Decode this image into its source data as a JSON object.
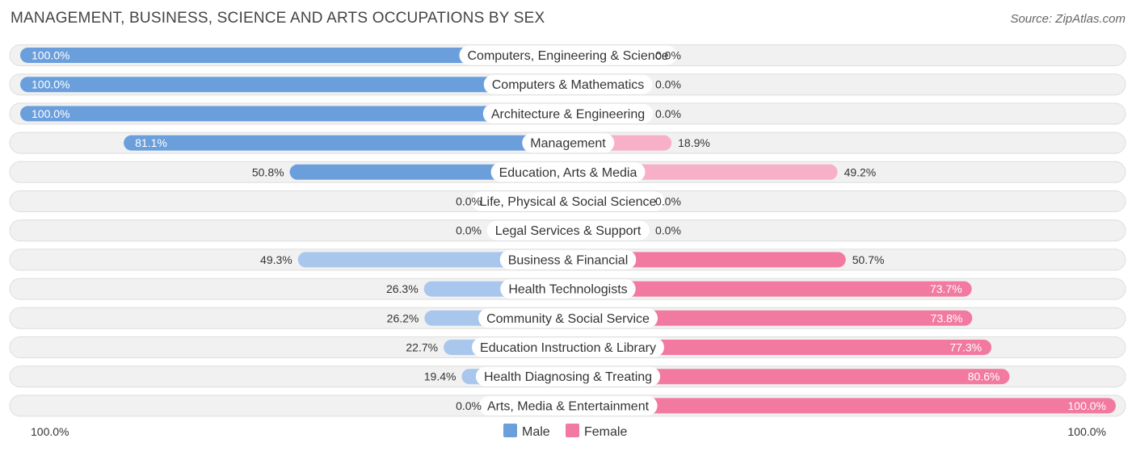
{
  "title": "MANAGEMENT, BUSINESS, SCIENCE AND ARTS OCCUPATIONS BY SEX",
  "source": "Source: ZipAtlas.com",
  "colors": {
    "male": "#6a9fdc",
    "male_light": "#a9c7ec",
    "female": "#f27aa0",
    "female_light": "#f7b0c7",
    "track": "#f1f1f1",
    "track_border": "#dedede"
  },
  "chart_data": {
    "type": "bar",
    "orientation": "horizontal-diverging",
    "categories": [
      "Computers, Engineering & Science",
      "Computers & Mathematics",
      "Architecture & Engineering",
      "Management",
      "Education, Arts & Media",
      "Life, Physical & Social Science",
      "Legal Services & Support",
      "Business & Financial",
      "Health Technologists",
      "Community & Social Service",
      "Education Instruction & Library",
      "Health Diagnosing & Treating",
      "Arts, Media & Entertainment"
    ],
    "series": [
      {
        "name": "Male",
        "values": [
          100.0,
          100.0,
          100.0,
          81.1,
          50.8,
          0.0,
          0.0,
          49.3,
          26.3,
          26.2,
          22.7,
          19.4,
          0.0
        ],
        "labels": [
          "100.0%",
          "100.0%",
          "100.0%",
          "81.1%",
          "50.8%",
          "0.0%",
          "0.0%",
          "49.3%",
          "26.3%",
          "26.2%",
          "22.7%",
          "19.4%",
          "0.0%"
        ]
      },
      {
        "name": "Female",
        "values": [
          0.0,
          0.0,
          0.0,
          18.9,
          49.2,
          0.0,
          0.0,
          50.7,
          73.7,
          73.8,
          77.3,
          80.6,
          100.0
        ],
        "labels": [
          "0.0%",
          "0.0%",
          "0.0%",
          "18.9%",
          "49.2%",
          "0.0%",
          "0.0%",
          "50.7%",
          "73.7%",
          "73.8%",
          "77.3%",
          "80.6%",
          "100.0%"
        ]
      }
    ],
    "xlim": [
      0,
      100
    ],
    "axis_left_label": "100.0%",
    "axis_right_label": "100.0%",
    "legend": {
      "position": "bottom-center",
      "entries": [
        "Male",
        "Female"
      ]
    }
  }
}
